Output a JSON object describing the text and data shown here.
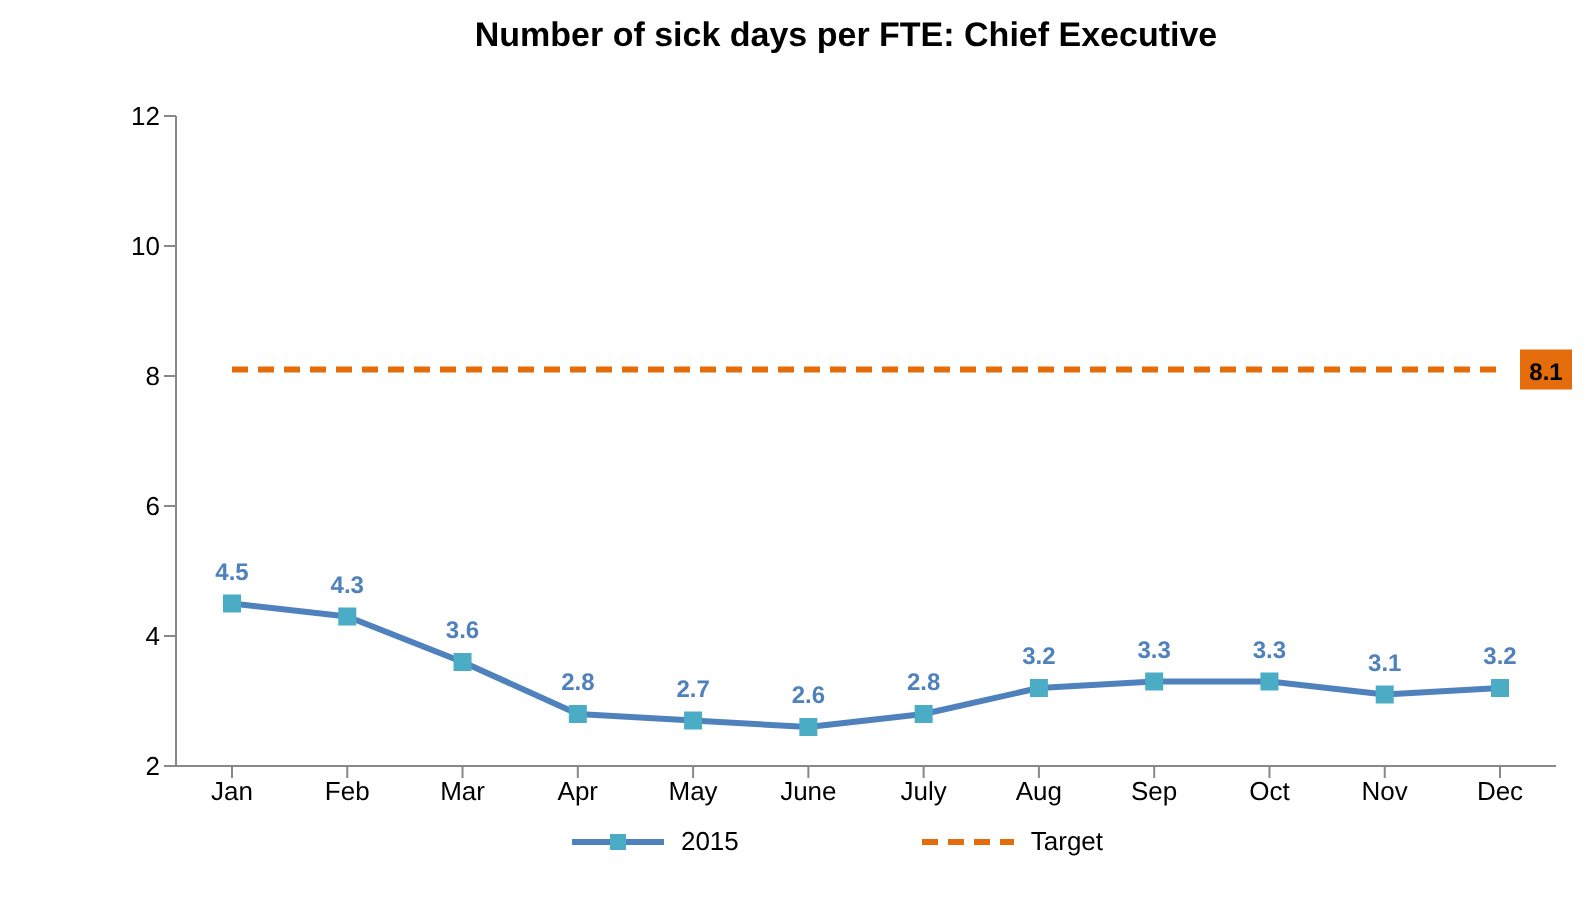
{
  "chart_data": {
    "type": "line",
    "title": "Number of sick days per FTE: Chief Executive",
    "categories": [
      "Jan",
      "Feb",
      "Mar",
      "Apr",
      "May",
      "June",
      "July",
      "Aug",
      "Sep",
      "Oct",
      "Nov",
      "Dec"
    ],
    "series": [
      {
        "name": "2015",
        "color": "#4f81bd",
        "marker": "square",
        "line_style": "solid",
        "values": [
          4.5,
          4.3,
          3.6,
          2.8,
          2.7,
          2.6,
          2.8,
          3.2,
          3.3,
          3.3,
          3.1,
          3.2
        ],
        "value_labels": [
          "4.5",
          "4.3",
          "3.6",
          "2.8",
          "2.7",
          "2.6",
          "2.8",
          "3.2",
          "3.3",
          "3.3",
          "3.1",
          "3.2"
        ]
      },
      {
        "name": "Target",
        "color": "#e46c0a",
        "marker": "none",
        "line_style": "dashed",
        "values": [
          8.1,
          8.1,
          8.1,
          8.1,
          8.1,
          8.1,
          8.1,
          8.1,
          8.1,
          8.1,
          8.1,
          8.1
        ],
        "value_labels": [
          null,
          null,
          null,
          null,
          null,
          null,
          null,
          null,
          null,
          null,
          null,
          "8.1"
        ]
      }
    ],
    "ylim": [
      2,
      12
    ],
    "yticks": [
      2,
      4,
      6,
      8,
      10,
      12
    ],
    "grid": false,
    "legend": "bottom"
  }
}
